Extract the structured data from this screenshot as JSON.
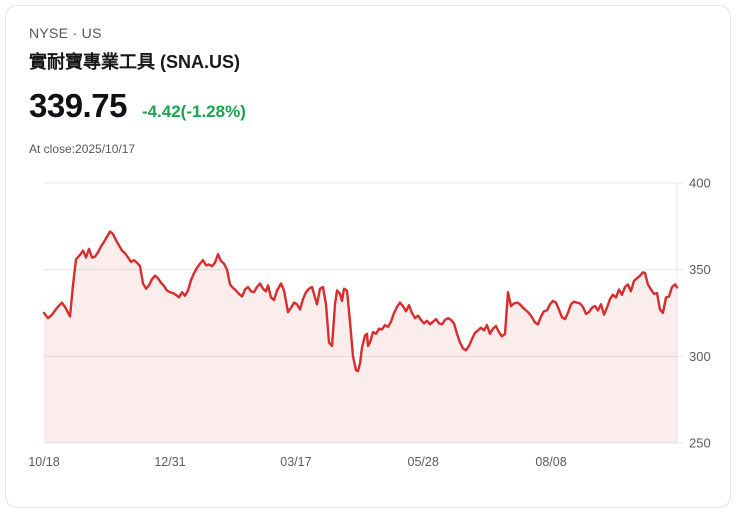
{
  "header": {
    "exchange_line": "NYSE · US",
    "title": "實耐寶專業工具 (SNA.US)",
    "price": "339.75",
    "change": "-4.42(-1.28%)",
    "change_color": "#1aa350",
    "as_of": "At close:2025/10/17"
  },
  "chart_data": {
    "type": "area",
    "title": "SNA.US 1-year price",
    "xlabel": "",
    "ylabel": "",
    "ylim": [
      250,
      400
    ],
    "y_ticks": [
      400,
      350,
      300,
      250
    ],
    "x_ticks": [
      {
        "label": "10/18",
        "f": 0.0
      },
      {
        "label": "12/31",
        "f": 0.199
      },
      {
        "label": "03/17",
        "f": 0.398
      },
      {
        "label": "05/28",
        "f": 0.599
      },
      {
        "label": "08/08",
        "f": 0.801
      }
    ],
    "grid": true,
    "legend": false,
    "line_color": "#d92c2c",
    "fill_color": "rgba(217,44,44,0.085)",
    "grid_color": "#e6e7e9",
    "axis_text_color": "#595c60",
    "points": [
      [
        0.0,
        325
      ],
      [
        0.0063,
        322
      ],
      [
        0.0126,
        324
      ],
      [
        0.0205,
        328
      ],
      [
        0.0284,
        331
      ],
      [
        0.0348,
        327.5
      ],
      [
        0.0411,
        323
      ],
      [
        0.0458,
        341
      ],
      [
        0.0506,
        356
      ],
      [
        0.0569,
        358.5
      ],
      [
        0.0616,
        361
      ],
      [
        0.0664,
        357
      ],
      [
        0.0711,
        362
      ],
      [
        0.0758,
        357
      ],
      [
        0.0806,
        357.5
      ],
      [
        0.0853,
        360
      ],
      [
        0.09,
        363.5
      ],
      [
        0.0948,
        366
      ],
      [
        0.0995,
        369
      ],
      [
        0.1043,
        372
      ],
      [
        0.109,
        370.5
      ],
      [
        0.1137,
        367
      ],
      [
        0.1185,
        364
      ],
      [
        0.1232,
        361
      ],
      [
        0.128,
        359.5
      ],
      [
        0.1327,
        357
      ],
      [
        0.1374,
        354.5
      ],
      [
        0.1422,
        355.5
      ],
      [
        0.1469,
        354
      ],
      [
        0.1517,
        352
      ],
      [
        0.1564,
        342
      ],
      [
        0.1611,
        339
      ],
      [
        0.1659,
        341
      ],
      [
        0.1706,
        344.5
      ],
      [
        0.1754,
        346.5
      ],
      [
        0.1801,
        345
      ],
      [
        0.1848,
        342.5
      ],
      [
        0.1896,
        340.5
      ],
      [
        0.1943,
        338
      ],
      [
        0.1991,
        337
      ],
      [
        0.2038,
        336.5
      ],
      [
        0.2085,
        335.5
      ],
      [
        0.2133,
        334
      ],
      [
        0.218,
        337
      ],
      [
        0.2227,
        335
      ],
      [
        0.2275,
        338
      ],
      [
        0.2322,
        344
      ],
      [
        0.237,
        348
      ],
      [
        0.2417,
        351
      ],
      [
        0.2464,
        353.5
      ],
      [
        0.2512,
        355.5
      ],
      [
        0.2559,
        352.5
      ],
      [
        0.2607,
        353
      ],
      [
        0.2654,
        352
      ],
      [
        0.2701,
        354
      ],
      [
        0.2749,
        359
      ],
      [
        0.2796,
        355
      ],
      [
        0.2844,
        353.5
      ],
      [
        0.2891,
        350
      ],
      [
        0.2938,
        341.5
      ],
      [
        0.2986,
        339.5
      ],
      [
        0.3033,
        338
      ],
      [
        0.3081,
        336
      ],
      [
        0.3128,
        334.5
      ],
      [
        0.3175,
        338.5
      ],
      [
        0.3223,
        340
      ],
      [
        0.327,
        337.5
      ],
      [
        0.3318,
        337
      ],
      [
        0.3365,
        340
      ],
      [
        0.3412,
        342
      ],
      [
        0.346,
        339
      ],
      [
        0.3507,
        337.5
      ],
      [
        0.3539,
        341
      ],
      [
        0.3586,
        334
      ],
      [
        0.3633,
        332.5
      ],
      [
        0.3681,
        338
      ],
      [
        0.3744,
        342
      ],
      [
        0.3791,
        338
      ],
      [
        0.3855,
        325.5
      ],
      [
        0.3902,
        328
      ],
      [
        0.3949,
        331
      ],
      [
        0.3997,
        330
      ],
      [
        0.4044,
        327
      ],
      [
        0.4092,
        333
      ],
      [
        0.4139,
        337
      ],
      [
        0.4186,
        339
      ],
      [
        0.4234,
        340
      ],
      [
        0.4281,
        334
      ],
      [
        0.4313,
        330
      ],
      [
        0.436,
        339
      ],
      [
        0.4408,
        340
      ],
      [
        0.4455,
        330
      ],
      [
        0.4502,
        308
      ],
      [
        0.455,
        306
      ],
      [
        0.4597,
        330
      ],
      [
        0.4629,
        338
      ],
      [
        0.4676,
        336
      ],
      [
        0.4708,
        332
      ],
      [
        0.4739,
        339
      ],
      [
        0.4787,
        338
      ],
      [
        0.4834,
        320
      ],
      [
        0.4882,
        300
      ],
      [
        0.4929,
        292
      ],
      [
        0.496,
        291.5
      ],
      [
        0.4992,
        296
      ],
      [
        0.5024,
        305
      ],
      [
        0.5071,
        312
      ],
      [
        0.5103,
        313
      ],
      [
        0.5119,
        306
      ],
      [
        0.515,
        308
      ],
      [
        0.5198,
        314
      ],
      [
        0.5245,
        313
      ],
      [
        0.5292,
        316
      ],
      [
        0.534,
        315.5
      ],
      [
        0.5387,
        318
      ],
      [
        0.5434,
        317
      ],
      [
        0.5482,
        320
      ],
      [
        0.5529,
        325
      ],
      [
        0.5577,
        328.5
      ],
      [
        0.5624,
        331
      ],
      [
        0.5671,
        329
      ],
      [
        0.5719,
        326
      ],
      [
        0.5766,
        329.5
      ],
      [
        0.5813,
        325
      ],
      [
        0.5861,
        322
      ],
      [
        0.5908,
        323.5
      ],
      [
        0.5956,
        321
      ],
      [
        0.6003,
        319
      ],
      [
        0.605,
        320.5
      ],
      [
        0.6098,
        318.5
      ],
      [
        0.6145,
        320
      ],
      [
        0.6192,
        321.5
      ],
      [
        0.624,
        319
      ],
      [
        0.6287,
        318.5
      ],
      [
        0.6335,
        321
      ],
      [
        0.6382,
        322
      ],
      [
        0.6429,
        321
      ],
      [
        0.6477,
        319
      ],
      [
        0.6524,
        313
      ],
      [
        0.6572,
        308
      ],
      [
        0.6619,
        304.5
      ],
      [
        0.6666,
        303.5
      ],
      [
        0.6714,
        306
      ],
      [
        0.6761,
        310
      ],
      [
        0.6808,
        313.5
      ],
      [
        0.6856,
        315
      ],
      [
        0.6903,
        316.5
      ],
      [
        0.6951,
        315
      ],
      [
        0.6998,
        318
      ],
      [
        0.7045,
        313
      ],
      [
        0.7093,
        316
      ],
      [
        0.714,
        317.5
      ],
      [
        0.7187,
        314
      ],
      [
        0.7235,
        311.5
      ],
      [
        0.7282,
        313
      ],
      [
        0.733,
        337
      ],
      [
        0.7377,
        329
      ],
      [
        0.7424,
        330.5
      ],
      [
        0.7472,
        331
      ],
      [
        0.7519,
        330
      ],
      [
        0.7567,
        328
      ],
      [
        0.7614,
        326.5
      ],
      [
        0.7661,
        325
      ],
      [
        0.7709,
        322.5
      ],
      [
        0.7756,
        319.5
      ],
      [
        0.7804,
        318.5
      ],
      [
        0.7851,
        323
      ],
      [
        0.7898,
        326
      ],
      [
        0.7946,
        326.5
      ],
      [
        0.7993,
        330
      ],
      [
        0.804,
        332
      ],
      [
        0.8088,
        331
      ],
      [
        0.8135,
        327
      ],
      [
        0.8183,
        322.5
      ],
      [
        0.823,
        321.5
      ],
      [
        0.8277,
        325
      ],
      [
        0.8325,
        330
      ],
      [
        0.8372,
        331.5
      ],
      [
        0.842,
        331
      ],
      [
        0.8467,
        330.5
      ],
      [
        0.8514,
        328.5
      ],
      [
        0.8562,
        324.5
      ],
      [
        0.8609,
        325.5
      ],
      [
        0.8656,
        328
      ],
      [
        0.8704,
        329
      ],
      [
        0.8751,
        326.5
      ],
      [
        0.8799,
        330
      ],
      [
        0.8846,
        324
      ],
      [
        0.8893,
        328
      ],
      [
        0.8941,
        333
      ],
      [
        0.8988,
        335.5
      ],
      [
        0.9036,
        334
      ],
      [
        0.9083,
        338.5
      ],
      [
        0.913,
        335.5
      ],
      [
        0.9178,
        340
      ],
      [
        0.9225,
        341.5
      ],
      [
        0.9272,
        337.5
      ],
      [
        0.932,
        343.5
      ],
      [
        0.9367,
        345
      ],
      [
        0.9415,
        346.5
      ],
      [
        0.9462,
        348.5
      ],
      [
        0.9494,
        348
      ],
      [
        0.9541,
        341.5
      ],
      [
        0.9589,
        338.5
      ],
      [
        0.9636,
        336
      ],
      [
        0.9684,
        336.5
      ],
      [
        0.9731,
        327
      ],
      [
        0.9778,
        325
      ],
      [
        0.9826,
        334
      ],
      [
        0.9873,
        334.5
      ],
      [
        0.9921,
        340
      ],
      [
        0.9968,
        341.5
      ],
      [
        1.0,
        339.75
      ]
    ]
  }
}
